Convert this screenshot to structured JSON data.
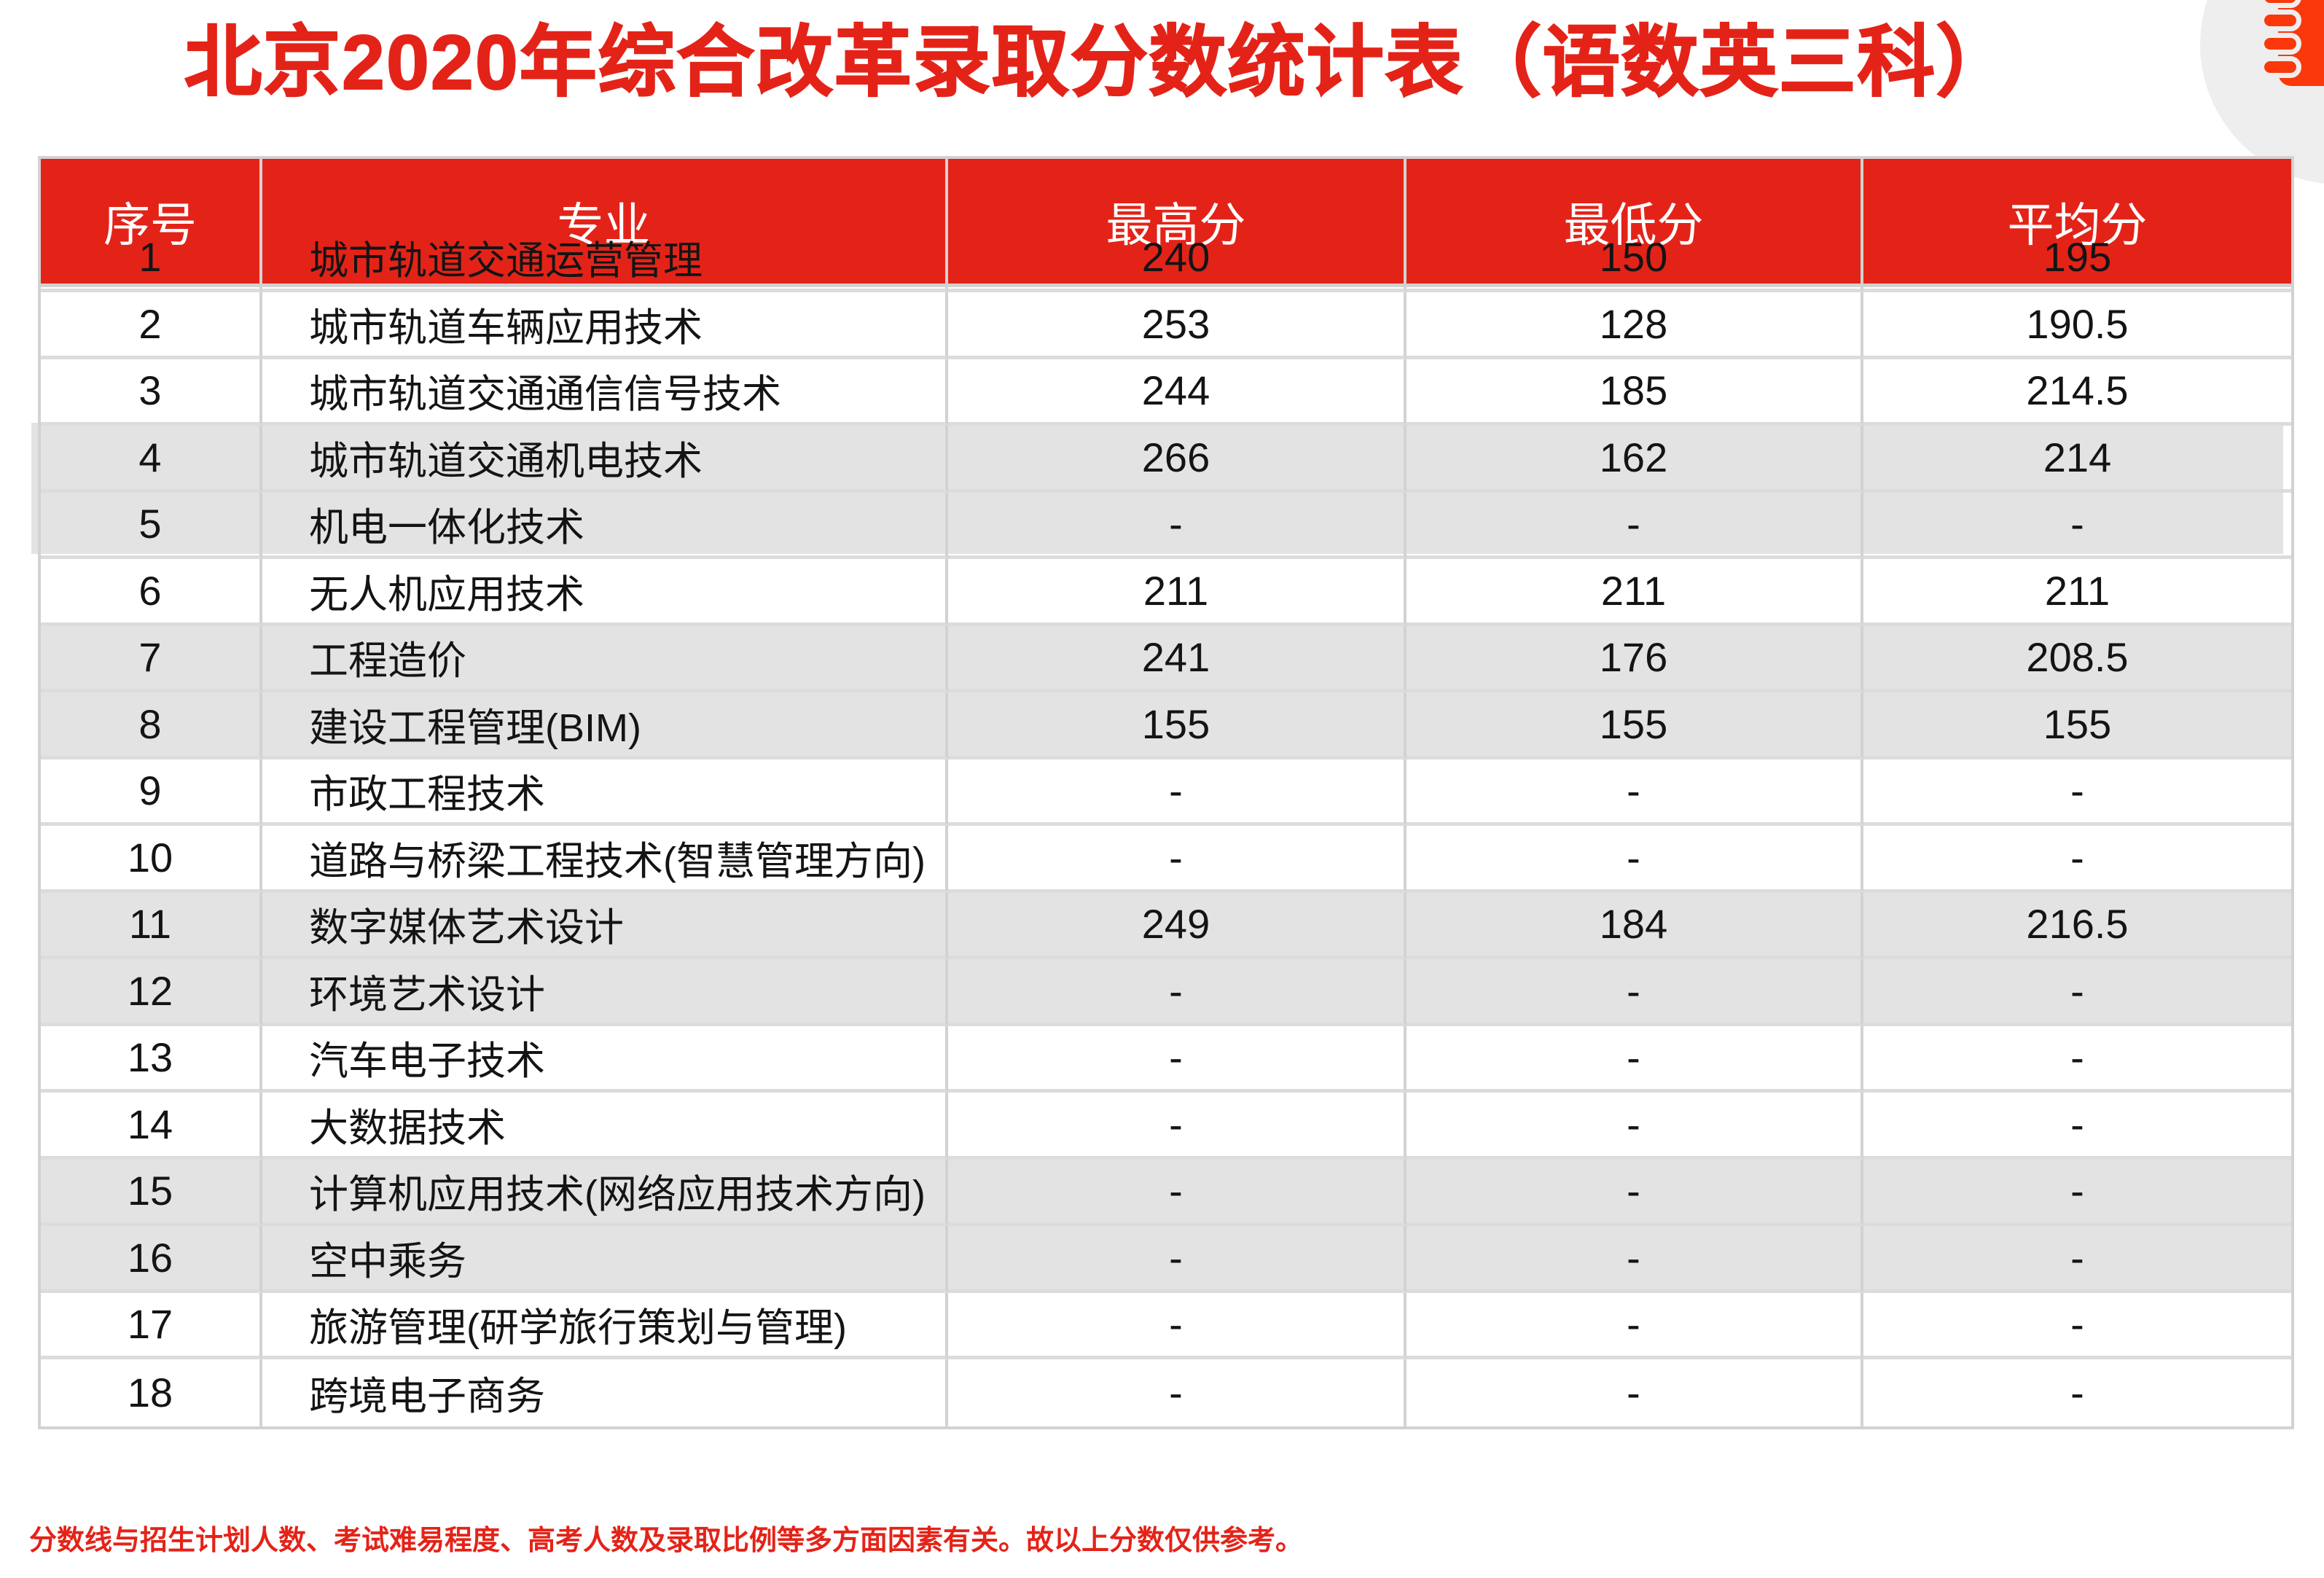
{
  "title": "北京2020年综合改革录取分数统计表（语数英三科）",
  "table": {
    "columns": [
      "序号",
      "专业",
      "最高分",
      "最低分",
      "平均分"
    ],
    "rows": [
      {
        "no": "1",
        "major": "城市轨道交通运营管理",
        "max": "240",
        "min": "150",
        "avg": "195"
      },
      {
        "no": "2",
        "major": "城市轨道车辆应用技术",
        "max": "253",
        "min": "128",
        "avg": "190.5"
      },
      {
        "no": "3",
        "major": "城市轨道交通通信信号技术",
        "max": "244",
        "min": "185",
        "avg": "214.5"
      },
      {
        "no": "4",
        "major": "城市轨道交通机电技术",
        "max": "266",
        "min": "162",
        "avg": "214"
      },
      {
        "no": "5",
        "major": "机电一体化技术",
        "max": "-",
        "min": "-",
        "avg": "-"
      },
      {
        "no": "6",
        "major": "无人机应用技术",
        "max": "211",
        "min": "211",
        "avg": "211"
      },
      {
        "no": "7",
        "major": "工程造价",
        "max": "241",
        "min": "176",
        "avg": "208.5"
      },
      {
        "no": "8",
        "major": "建设工程管理(BIM)",
        "max": "155",
        "min": "155",
        "avg": "155"
      },
      {
        "no": "9",
        "major": "市政工程技术",
        "max": "-",
        "min": "-",
        "avg": "-"
      },
      {
        "no": "10",
        "major": "道路与桥梁工程技术(智慧管理方向)",
        "max": "-",
        "min": "-",
        "avg": "-"
      },
      {
        "no": "11",
        "major": "数字媒体艺术设计",
        "max": "249",
        "min": "184",
        "avg": "216.5"
      },
      {
        "no": "12",
        "major": "环境艺术设计",
        "max": "-",
        "min": "-",
        "avg": "-"
      },
      {
        "no": "13",
        "major": "汽车电子技术",
        "max": "-",
        "min": "-",
        "avg": "-"
      },
      {
        "no": "14",
        "major": "大数据技术",
        "max": "-",
        "min": "-",
        "avg": "-"
      },
      {
        "no": "15",
        "major": "计算机应用技术(网络应用技术方向)",
        "max": "-",
        "min": "-",
        "avg": "-"
      },
      {
        "no": "16",
        "major": "空中乘务",
        "max": "-",
        "min": "-",
        "avg": "-"
      },
      {
        "no": "17",
        "major": "旅游管理(研学旅行策划与管理)",
        "max": "-",
        "min": "-",
        "avg": "-"
      },
      {
        "no": "18",
        "major": "跨境电子商务",
        "max": "-",
        "min": "-",
        "avg": "-"
      }
    ],
    "gray_pair_rows": [
      3,
      4,
      7,
      8,
      11,
      12,
      15,
      16
    ],
    "shifted_gray_rows": [
      3,
      4
    ]
  },
  "footnote": "分数线与招生计划人数、考试难易程度、高考人数及录取比例等多方面因素有关。故以上分数仅供参考。",
  "decoration": {
    "icon": "notebook-spiral-icon"
  },
  "colors": {
    "primary_red": "#e42318",
    "icon_red": "#fa380b",
    "row_gray": "#e3e3e3",
    "border_gray": "#d2d2d2",
    "hline_gray": "#dcdcdc",
    "circle_gray": "#eeeeee",
    "text_dark": "#141414"
  }
}
